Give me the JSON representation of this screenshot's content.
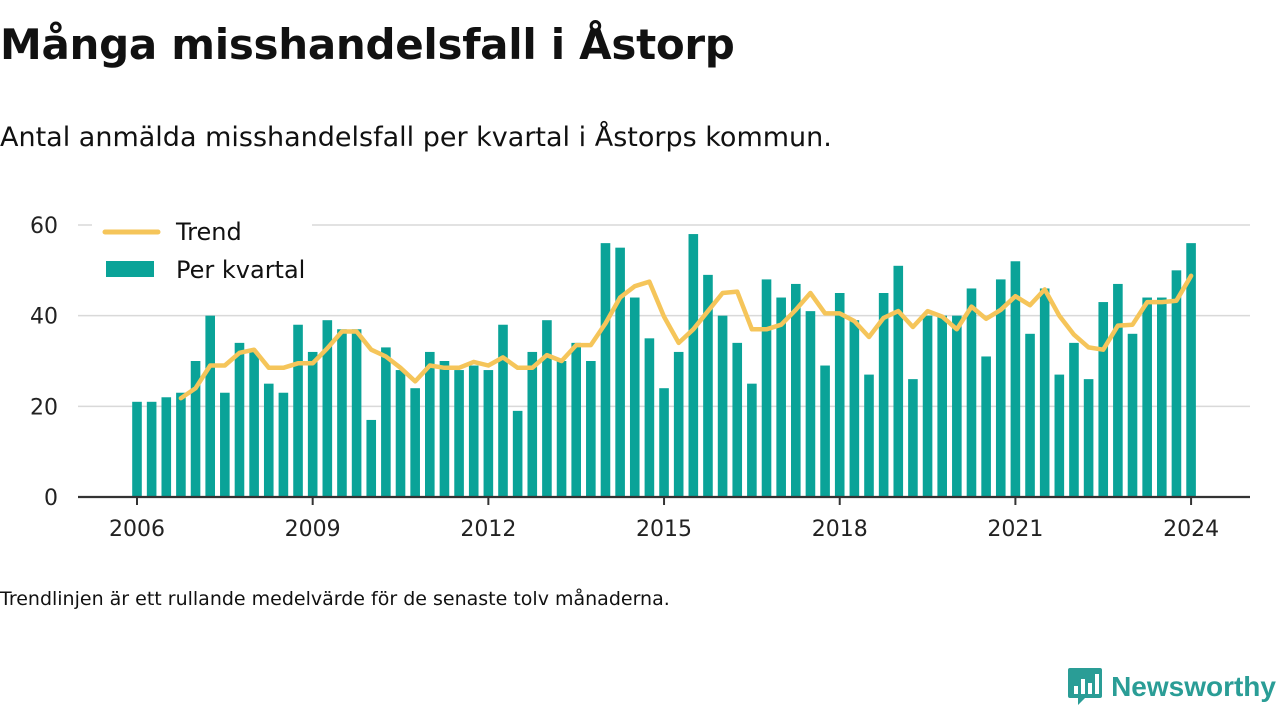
{
  "title": "Många misshandelsfall i Åstorp",
  "subtitle": "Antal anmälda misshandelsfall per kvartal i Åstorps kommun.",
  "footnote": "Trendlinjen är ett rullande medelvärde för de senaste tolv månaderna.",
  "brand": {
    "name": "Newsworthy",
    "icon": "newsworthy-logo-icon"
  },
  "colors": {
    "bars": "#0aa398",
    "trend": "#f5c55a",
    "grid": "#d9d9d9",
    "axis": "#333333",
    "brand": "#2a9d96"
  },
  "chart_data": {
    "type": "bar",
    "x_tick_labels": [
      "2006",
      "2009",
      "2012",
      "2015",
      "2018",
      "2021",
      "2024"
    ],
    "y_tick_labels": [
      "0",
      "20",
      "40",
      "60"
    ],
    "ylim": [
      0,
      60
    ],
    "grid": true,
    "legend_position": "top-left",
    "categories": [
      "2006 Q1",
      "2006 Q2",
      "2006 Q3",
      "2006 Q4",
      "2007 Q1",
      "2007 Q2",
      "2007 Q3",
      "2007 Q4",
      "2008 Q1",
      "2008 Q2",
      "2008 Q3",
      "2008 Q4",
      "2009 Q1",
      "2009 Q2",
      "2009 Q3",
      "2009 Q4",
      "2010 Q1",
      "2010 Q2",
      "2010 Q3",
      "2010 Q4",
      "2011 Q1",
      "2011 Q2",
      "2011 Q3",
      "2011 Q4",
      "2012 Q1",
      "2012 Q2",
      "2012 Q3",
      "2012 Q4",
      "2013 Q1",
      "2013 Q2",
      "2013 Q3",
      "2013 Q4",
      "2014 Q1",
      "2014 Q2",
      "2014 Q3",
      "2014 Q4",
      "2015 Q1",
      "2015 Q2",
      "2015 Q3",
      "2015 Q4",
      "2016 Q1",
      "2016 Q2",
      "2016 Q3",
      "2016 Q4",
      "2017 Q1",
      "2017 Q2",
      "2017 Q3",
      "2017 Q4",
      "2018 Q1",
      "2018 Q2",
      "2018 Q3",
      "2018 Q4",
      "2019 Q1",
      "2019 Q2",
      "2019 Q3",
      "2019 Q4",
      "2020 Q1",
      "2020 Q2",
      "2020 Q3",
      "2020 Q4",
      "2021 Q1",
      "2021 Q2",
      "2021 Q3",
      "2021 Q4",
      "2022 Q1",
      "2022 Q2",
      "2022 Q3",
      "2022 Q4",
      "2023 Q1",
      "2023 Q2",
      "2023 Q3",
      "2023 Q4",
      "2024 Q1"
    ],
    "series": [
      {
        "name": "Per kvartal",
        "type": "bar",
        "values": [
          21,
          21,
          22,
          23,
          30,
          40,
          23,
          34,
          32,
          25,
          23,
          38,
          32,
          39,
          37,
          37,
          17,
          33,
          28,
          24,
          32,
          30,
          28,
          29,
          28,
          38,
          19,
          32,
          39,
          30,
          34,
          30,
          56,
          55,
          44,
          35,
          24,
          32,
          58,
          49,
          40,
          34,
          25,
          48,
          44,
          47,
          41,
          29,
          45,
          39,
          27,
          45,
          51,
          26,
          40,
          40,
          40,
          46,
          31,
          48,
          52,
          36,
          46,
          27,
          34,
          26,
          43,
          47,
          36,
          44,
          44,
          50,
          56
        ]
      },
      {
        "name": "Trend",
        "type": "line",
        "values": [
          null,
          null,
          null,
          21.8,
          24,
          29,
          29,
          31.8,
          32.5,
          28.5,
          28.5,
          29.5,
          29.5,
          32.8,
          36.5,
          36.5,
          32.5,
          31,
          28.5,
          25.5,
          29,
          28.5,
          28.5,
          29.8,
          29,
          30.8,
          28.5,
          28.5,
          31.3,
          30,
          33.5,
          33.5,
          38.3,
          44,
          46.5,
          47.5,
          39.8,
          34,
          37,
          41,
          45,
          45.3,
          37,
          37,
          38,
          41.3,
          45,
          40.5,
          40.5,
          38.8,
          35.3,
          39.5,
          41,
          37.5,
          41,
          39.8,
          37,
          42,
          39.3,
          41.3,
          44.3,
          42.3,
          45.8,
          40,
          35.8,
          33,
          32.5,
          37.8,
          38,
          43,
          43,
          43.3,
          48.8
        ]
      }
    ]
  }
}
